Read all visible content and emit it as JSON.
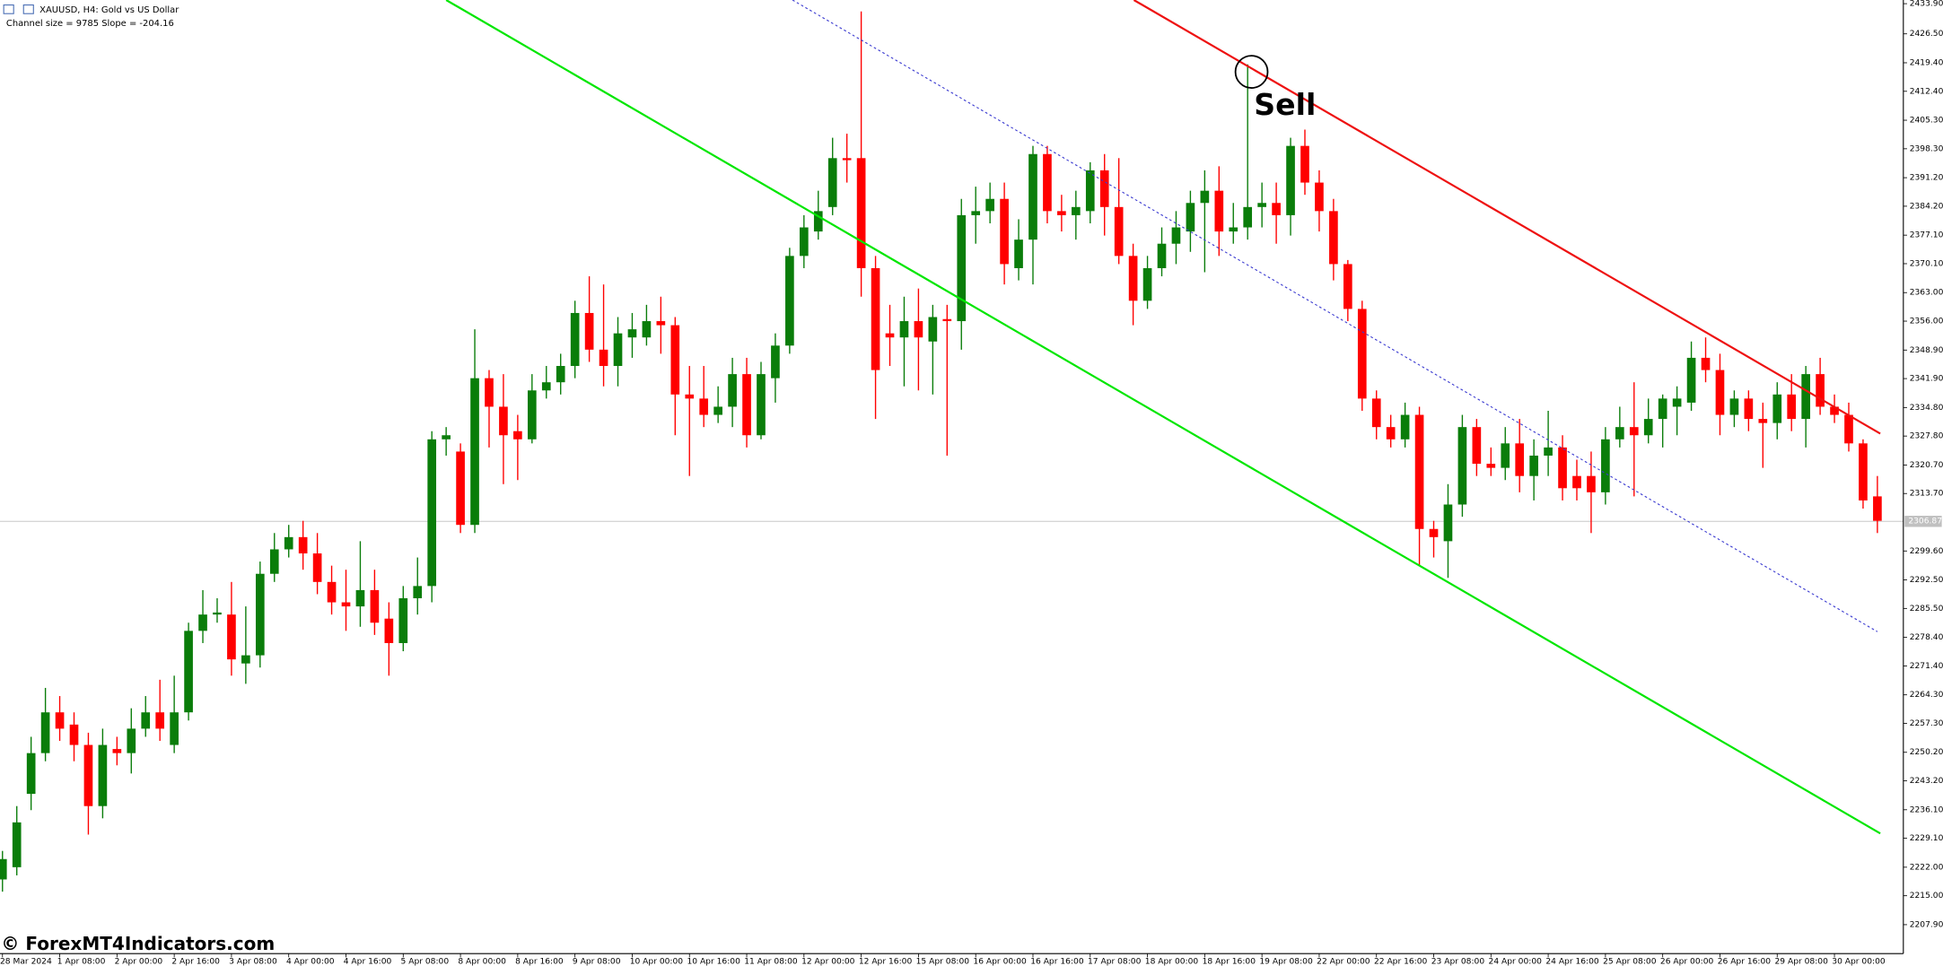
{
  "chart_data": {
    "type": "candlestick",
    "title": "XAUUSD, H4:  Gold vs US Dollar",
    "subtitle": "Channel size = 9785 Slope = -204.16",
    "annotations": [
      "Sell"
    ],
    "watermark": "© ForexMT4Indicators.com",
    "up_color": "#0a7d0a",
    "down_color": "#ff0000",
    "categories": [
      "28 Mar 2024",
      null,
      null,
      null,
      "1 Apr 08:00",
      null,
      null,
      null,
      "2 Apr 00:00",
      null,
      null,
      null,
      "2 Apr 16:00",
      null,
      null,
      null,
      "3 Apr 08:00",
      null,
      null,
      null,
      "4 Apr 00:00",
      null,
      null,
      null,
      "4 Apr 16:00",
      null,
      null,
      null,
      "5 Apr 08:00",
      null,
      null,
      null,
      "8 Apr 00:00",
      null,
      null,
      null,
      "8 Apr 16:00",
      null,
      null,
      null,
      "9 Apr 08:00",
      null,
      null,
      null,
      "10 Apr 00:00",
      null,
      null,
      null,
      "10 Apr 16:00",
      null,
      null,
      null,
      "11 Apr 08:00",
      null,
      null,
      null,
      "12 Apr 00:00",
      null,
      null,
      null,
      "12 Apr 16:00",
      null,
      null,
      null,
      "15 Apr 08:00",
      null,
      null,
      null,
      "16 Apr 00:00",
      null,
      null,
      null,
      "16 Apr 16:00",
      null,
      null,
      null,
      "17 Apr 08:00",
      null,
      null,
      null,
      "18 Apr 00:00",
      null,
      null,
      null,
      "18 Apr 16:00",
      null,
      null,
      null,
      "19 Apr 08:00",
      null,
      null,
      null,
      "22 Apr 00:00",
      null,
      null,
      null,
      "22 Apr 16:00",
      null,
      null,
      null,
      "23 Apr 08:00",
      null,
      null,
      null,
      "24 Apr 00:00",
      null,
      null,
      null,
      "24 Apr 16:00",
      null,
      null,
      null,
      "25 Apr 08:00",
      null,
      null,
      null,
      "26 Apr 00:00",
      null,
      null,
      null,
      "26 Apr 16:00",
      null,
      null,
      null,
      "29 Apr 08:00",
      null,
      null,
      null,
      "30 Apr 00:00",
      null,
      null,
      null
    ],
    "open": [
      2219,
      2222,
      2240,
      2250,
      2260,
      2257,
      2252,
      2237,
      2251,
      2250,
      2256,
      2260,
      2252,
      2260,
      2280,
      2284,
      2284,
      2272,
      2274,
      2294,
      2300,
      2303,
      2299,
      2292,
      2287,
      2286,
      2290,
      2283,
      2277,
      2288,
      2291,
      2327,
      2324,
      2306,
      2342,
      2335,
      2329,
      2327,
      2339,
      2341,
      2345,
      2358,
      2349,
      2345,
      2352,
      2352,
      2356,
      2355,
      2338,
      2337,
      2333,
      2335,
      2343,
      2328,
      2342,
      2350,
      2372,
      2378,
      2384,
      2396,
      2396,
      2369,
      2353,
      2352,
      2356,
      2351,
      2356.5,
      2356,
      2382,
      2383,
      2386,
      2369,
      2376,
      2397,
      2383,
      2382,
      2383,
      2393,
      2384,
      2372,
      2361,
      2369,
      2375,
      2378,
      2385,
      2388,
      2378,
      2379,
      2384,
      2385,
      2382,
      2399,
      2390,
      2383,
      2370,
      2359,
      2337,
      2330,
      2327,
      2333,
      2305,
      2302,
      2311,
      2330,
      2321,
      2320,
      2326,
      2318,
      2323,
      2325,
      2318,
      2318,
      2314,
      2327,
      2330,
      2328,
      2332,
      2335,
      2336,
      2347,
      2344,
      2333,
      2337,
      2332,
      2331,
      2338,
      2332,
      2343,
      2335,
      2333,
      2326,
      2313
    ],
    "high": [
      2226,
      2237,
      2254,
      2266,
      2264,
      2260,
      2255,
      2256,
      2254,
      2261,
      2264,
      2268,
      2269,
      2282,
      2290,
      2288,
      2292,
      2286,
      2297,
      2304,
      2306,
      2307,
      2304,
      2296,
      2295,
      2302,
      2295,
      2287,
      2291,
      2298,
      2329,
      2330,
      2326,
      2354,
      2344,
      2343,
      2333,
      2343,
      2345,
      2348,
      2361,
      2367,
      2365,
      2357,
      2358,
      2360,
      2362,
      2357,
      2345,
      2345,
      2340,
      2347,
      2347,
      2346,
      2353,
      2374,
      2382,
      2388,
      2401,
      2402,
      2432,
      2372,
      2360,
      2362,
      2364,
      2360,
      2360,
      2386,
      2389,
      2390,
      2390,
      2381,
      2399,
      2399,
      2387,
      2388,
      2395,
      2397,
      2396,
      2375,
      2372,
      2379,
      2383,
      2388,
      2393,
      2394,
      2385,
      2419,
      2390,
      2390,
      2401,
      2403,
      2393,
      2386,
      2371,
      2361,
      2339,
      2333,
      2336,
      2335,
      2307,
      2316,
      2333,
      2332,
      2325,
      2330,
      2332,
      2327,
      2334,
      2328,
      2322,
      2324,
      2330,
      2335,
      2341,
      2337,
      2338,
      2340,
      2351,
      2352,
      2348,
      2339,
      2339,
      2336,
      2341,
      2343,
      2345,
      2347,
      2338,
      2336,
      2327,
      2318
    ],
    "low": [
      2216,
      2220,
      2236,
      2248,
      2253,
      2248,
      2230,
      2234,
      2247,
      2245,
      2254,
      2253,
      2250,
      2258,
      2277,
      2282,
      2269,
      2267,
      2271,
      2292,
      2298,
      2295,
      2289,
      2284,
      2280,
      2281,
      2279,
      2269,
      2275,
      2284,
      2287,
      2323,
      2304,
      2304,
      2325,
      2316,
      2317,
      2326,
      2337,
      2338,
      2342,
      2346,
      2340,
      2340,
      2347,
      2350,
      2348,
      2328,
      2318,
      2330,
      2331,
      2330,
      2325,
      2327,
      2336,
      2348,
      2369,
      2376,
      2382,
      2390,
      2362,
      2332,
      2345,
      2340,
      2339,
      2338,
      2323,
      2349,
      2375,
      2380,
      2365,
      2366,
      2365,
      2380,
      2378,
      2376,
      2380,
      2377,
      2370,
      2355,
      2359,
      2367,
      2370,
      2373,
      2368,
      2372,
      2375,
      2376,
      2379,
      2375,
      2377,
      2387,
      2378,
      2366,
      2356,
      2334,
      2327,
      2325,
      2325,
      2296,
      2298,
      2293,
      2308,
      2318,
      2318,
      2317,
      2314,
      2312,
      2318,
      2312,
      2312,
      2304,
      2311,
      2325,
      2313,
      2326,
      2325,
      2328,
      2334,
      2341,
      2328,
      2330,
      2329,
      2320,
      2327,
      2329,
      2325,
      2333,
      2331,
      2324,
      2310,
      2304
    ],
    "close": [
      2224,
      2233,
      2250,
      2260,
      2256,
      2252,
      2237,
      2252,
      2250,
      2256,
      2260,
      2256,
      2260,
      2280,
      2284,
      2284.5,
      2273,
      2274,
      2294,
      2300,
      2303,
      2299,
      2292,
      2287,
      2286,
      2290,
      2282,
      2277,
      2288,
      2291,
      2327,
      2328,
      2306,
      2342,
      2335,
      2328,
      2327,
      2339,
      2341,
      2345,
      2358,
      2349,
      2345,
      2353,
      2354,
      2356,
      2355,
      2338,
      2337,
      2333,
      2335,
      2343,
      2328,
      2343,
      2350,
      2372,
      2379,
      2383,
      2396,
      2395.5,
      2369,
      2344,
      2352,
      2356,
      2352,
      2357,
      2356,
      2382,
      2383,
      2386,
      2370,
      2376,
      2397,
      2383,
      2382,
      2384,
      2393,
      2384,
      2372,
      2361,
      2369,
      2375,
      2379,
      2385,
      2388,
      2378,
      2379,
      2384,
      2385,
      2382,
      2399,
      2390,
      2383,
      2370,
      2359,
      2337,
      2330,
      2327,
      2333,
      2305,
      2303,
      2311,
      2330,
      2321,
      2320,
      2326,
      2318,
      2323,
      2325,
      2315,
      2315,
      2314,
      2327,
      2330,
      2328,
      2332,
      2337,
      2337,
      2347,
      2344,
      2333,
      2337,
      2332,
      2331,
      2338,
      2332,
      2343,
      2335,
      2333,
      2326,
      2312,
      2307
    ],
    "current_price": 2306.87,
    "lines": [
      {
        "color": "#00e600",
        "style": "solid",
        "points": [
          [
            31.0,
            2434.8
          ],
          [
            131.2,
            2230.3
          ]
        ]
      },
      {
        "color": "#3a3ad0",
        "style": "dotted",
        "points": [
          [
            55.2,
            2434.8
          ],
          [
            131.0,
            2279.8
          ]
        ]
      },
      {
        "color": "#ee1111",
        "style": "solid",
        "points": [
          [
            79.05,
            2434.8
          ],
          [
            131.2,
            2328.4
          ]
        ]
      }
    ],
    "ylim": [
      2200.8,
      2434.8
    ],
    "yticks": [
      {
        "value": 2433.9,
        "label": "2433.90"
      },
      {
        "value": 2426.5,
        "label": "2426.50"
      },
      {
        "value": 2419.4,
        "label": "2419.40"
      },
      {
        "value": 2412.4,
        "label": "2412.40"
      },
      {
        "value": 2405.3,
        "label": "2405.30"
      },
      {
        "value": 2398.3,
        "label": "2398.30"
      },
      {
        "value": 2391.2,
        "label": "2391.20"
      },
      {
        "value": 2384.2,
        "label": "2384.20"
      },
      {
        "value": 2377.1,
        "label": "2377.10"
      },
      {
        "value": 2370.1,
        "label": "2370.10"
      },
      {
        "value": 2363,
        "label": "2363.00"
      },
      {
        "value": 2356,
        "label": "2356.00"
      },
      {
        "value": 2348.9,
        "label": "2348.90"
      },
      {
        "value": 2341.9,
        "label": "2341.90"
      },
      {
        "value": 2334.8,
        "label": "2334.80"
      },
      {
        "value": 2327.8,
        "label": "2327.80"
      },
      {
        "value": 2320.7,
        "label": "2320.70"
      },
      {
        "value": 2313.7,
        "label": "2313.70"
      },
      {
        "value": 2299.6,
        "label": "2299.60"
      },
      {
        "value": 2292.5,
        "label": "2292.50"
      },
      {
        "value": 2285.5,
        "label": "2285.50"
      },
      {
        "value": 2278.4,
        "label": "2278.40"
      },
      {
        "value": 2271.4,
        "label": "2271.40"
      },
      {
        "value": 2264.3,
        "label": "2264.30"
      },
      {
        "value": 2257.3,
        "label": "2257.30"
      },
      {
        "value": 2250.2,
        "label": "2250.20"
      },
      {
        "value": 2243.2,
        "label": "2243.20"
      },
      {
        "value": 2236.1,
        "label": "2236.10"
      },
      {
        "value": 2229.1,
        "label": "2229.10"
      },
      {
        "value": 2222,
        "label": "2222.00"
      },
      {
        "value": 2215,
        "label": "2215.00"
      },
      {
        "value": 2207.9,
        "label": "2207.90"
      }
    ],
    "grid": false
  }
}
